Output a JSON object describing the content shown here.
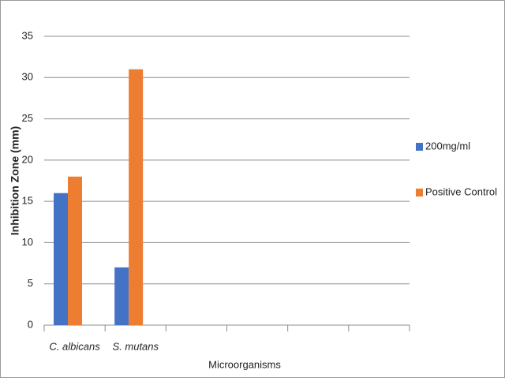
{
  "chart_data": {
    "type": "bar",
    "y_label": "Inhibition Zone (mm)",
    "x_label": "Microorganisms",
    "categories": [
      "C. albicans",
      "S. mutans",
      null,
      null,
      null,
      null
    ],
    "series": [
      {
        "name": "200mg/ml",
        "color": "#4472c4",
        "values": [
          16,
          7,
          null,
          null,
          null,
          null
        ]
      },
      {
        "name": "Positive Control",
        "color": "#ed7d31",
        "values": [
          18,
          31,
          null,
          null,
          null,
          null
        ]
      }
    ],
    "ylim": [
      0,
      35
    ],
    "yticks": [
      0,
      5,
      10,
      15,
      20,
      25,
      30,
      35
    ],
    "grid": true,
    "legend": "right"
  }
}
